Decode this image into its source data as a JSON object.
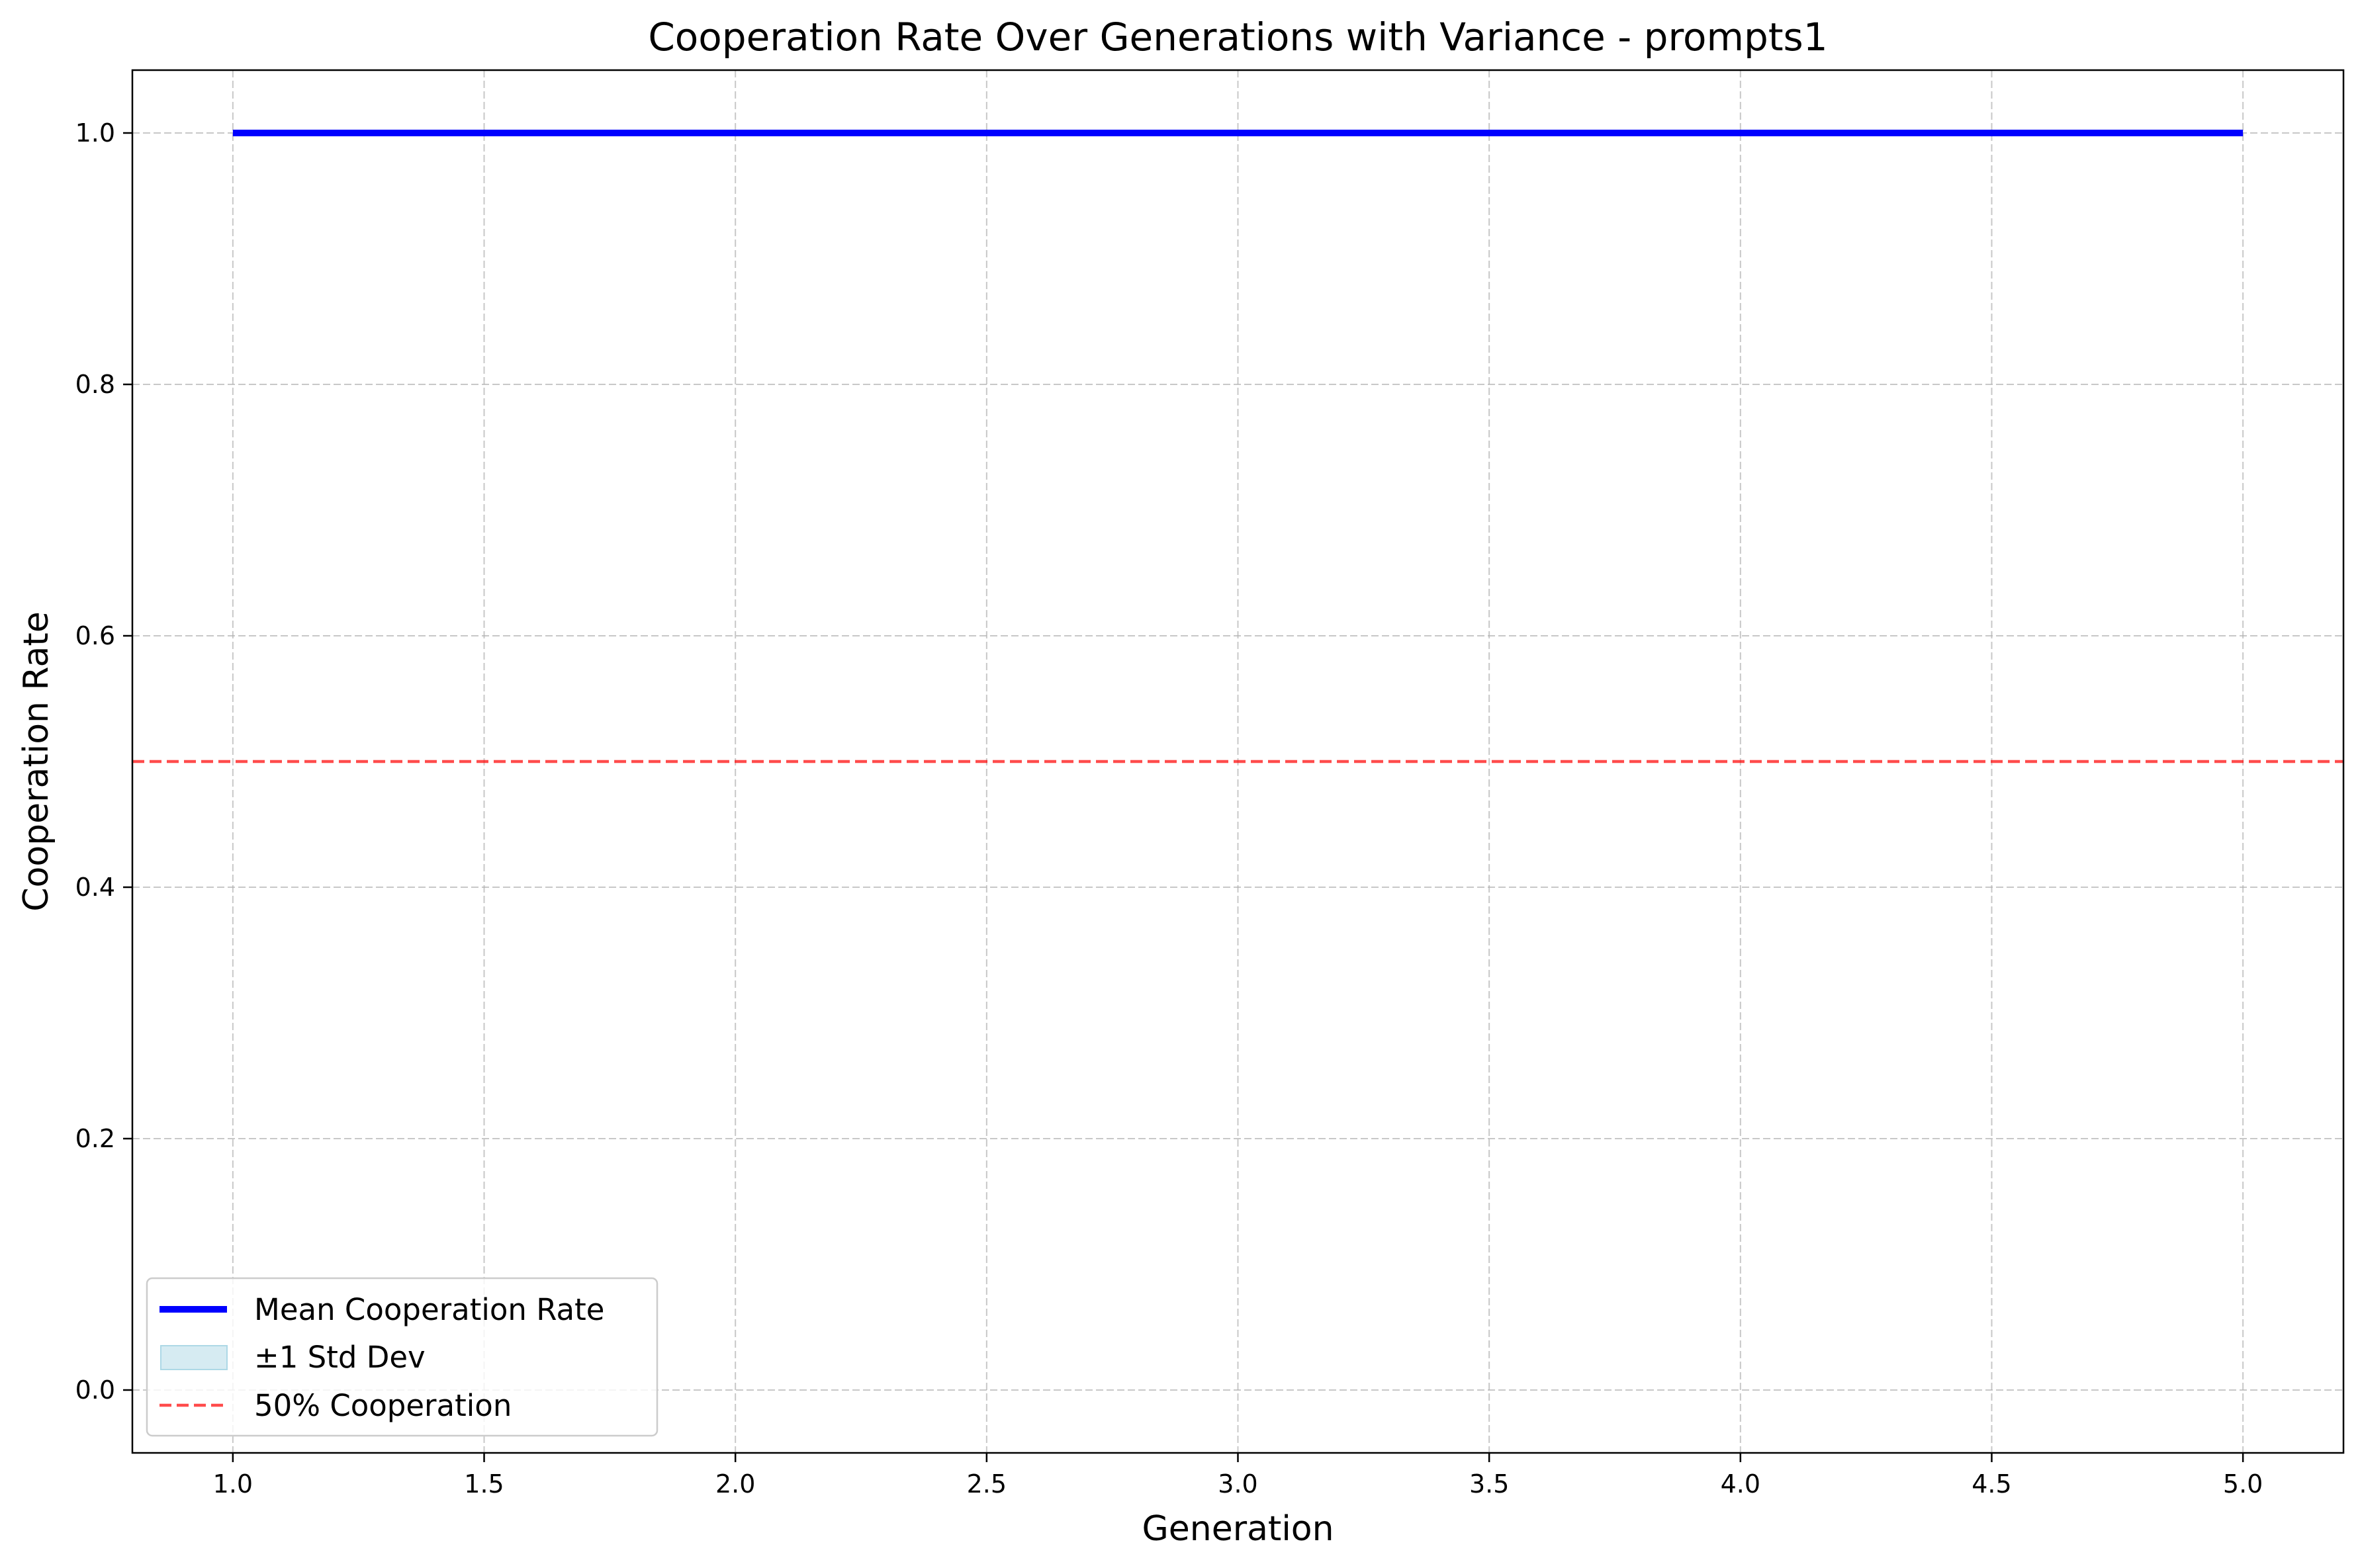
{
  "chart_data": {
    "type": "line",
    "title": "Cooperation Rate Over Generations with Variance - prompts1",
    "xlabel": "Generation",
    "ylabel": "Cooperation Rate",
    "xlim": [
      0.8,
      5.2
    ],
    "ylim": [
      -0.05,
      1.05
    ],
    "xticks": [
      1.0,
      1.5,
      2.0,
      2.5,
      3.0,
      3.5,
      4.0,
      4.5,
      5.0
    ],
    "xtick_labels": [
      "1.0",
      "1.5",
      "2.0",
      "2.5",
      "3.0",
      "3.5",
      "4.0",
      "4.5",
      "5.0"
    ],
    "yticks": [
      0.0,
      0.2,
      0.4,
      0.6,
      0.8,
      1.0
    ],
    "ytick_labels": [
      "0.0",
      "0.2",
      "0.4",
      "0.6",
      "0.8",
      "1.0"
    ],
    "grid": true,
    "legend_position": "lower-left",
    "series": [
      {
        "name": "Mean Cooperation Rate",
        "x": [
          1,
          2,
          3,
          4,
          5
        ],
        "values": [
          1.0,
          1.0,
          1.0,
          1.0,
          1.0
        ],
        "color": "#0000ff"
      },
      {
        "name": "±1 Std Dev",
        "x": [
          1,
          2,
          3,
          4,
          5
        ],
        "lower": [
          1.0,
          1.0,
          1.0,
          1.0,
          1.0
        ],
        "upper": [
          1.0,
          1.0,
          1.0,
          1.0,
          1.0
        ],
        "color": "#add8e6"
      }
    ],
    "reference_lines": [
      {
        "name": "50% Cooperation",
        "y": 0.5,
        "color": "#ff0000",
        "style": "dashed"
      }
    ]
  }
}
